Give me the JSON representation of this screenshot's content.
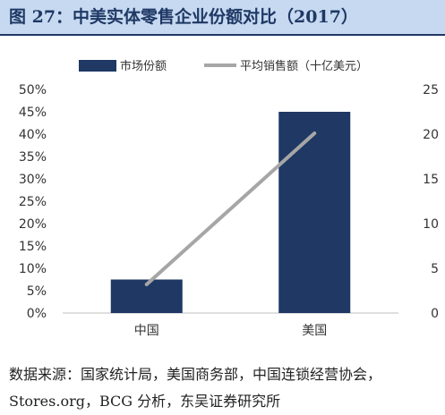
{
  "figure": {
    "title": "图 27：中美实体零售企业份额对比（2017）",
    "source": "数据来源：国家统计局，美国商务部，中国连锁经营协会，Stores.org，BCG 分析，东吴证券研究所"
  },
  "colors": {
    "bar": "#1f3864",
    "line": "#a6a6a6",
    "axis": "#bfbfbf"
  },
  "chart_data": {
    "type": "bar",
    "categories": [
      "中国",
      "美国"
    ],
    "series": [
      {
        "name": "市场份额",
        "kind": "bar",
        "axis": "left",
        "values": [
          0.075,
          0.45
        ]
      },
      {
        "name": "平均销售额（十亿美元）",
        "kind": "line",
        "axis": "right",
        "values": [
          3.2,
          20.1
        ]
      }
    ],
    "y_left": {
      "range": [
        0,
        0.5
      ],
      "ticks": [
        "0%",
        "5%",
        "10%",
        "15%",
        "20%",
        "25%",
        "30%",
        "35%",
        "40%",
        "45%",
        "50%"
      ]
    },
    "y_right": {
      "range": [
        0,
        25
      ],
      "ticks": [
        "0",
        "5",
        "10",
        "15",
        "20",
        "25"
      ]
    },
    "legend_position": "top",
    "grid": false
  }
}
